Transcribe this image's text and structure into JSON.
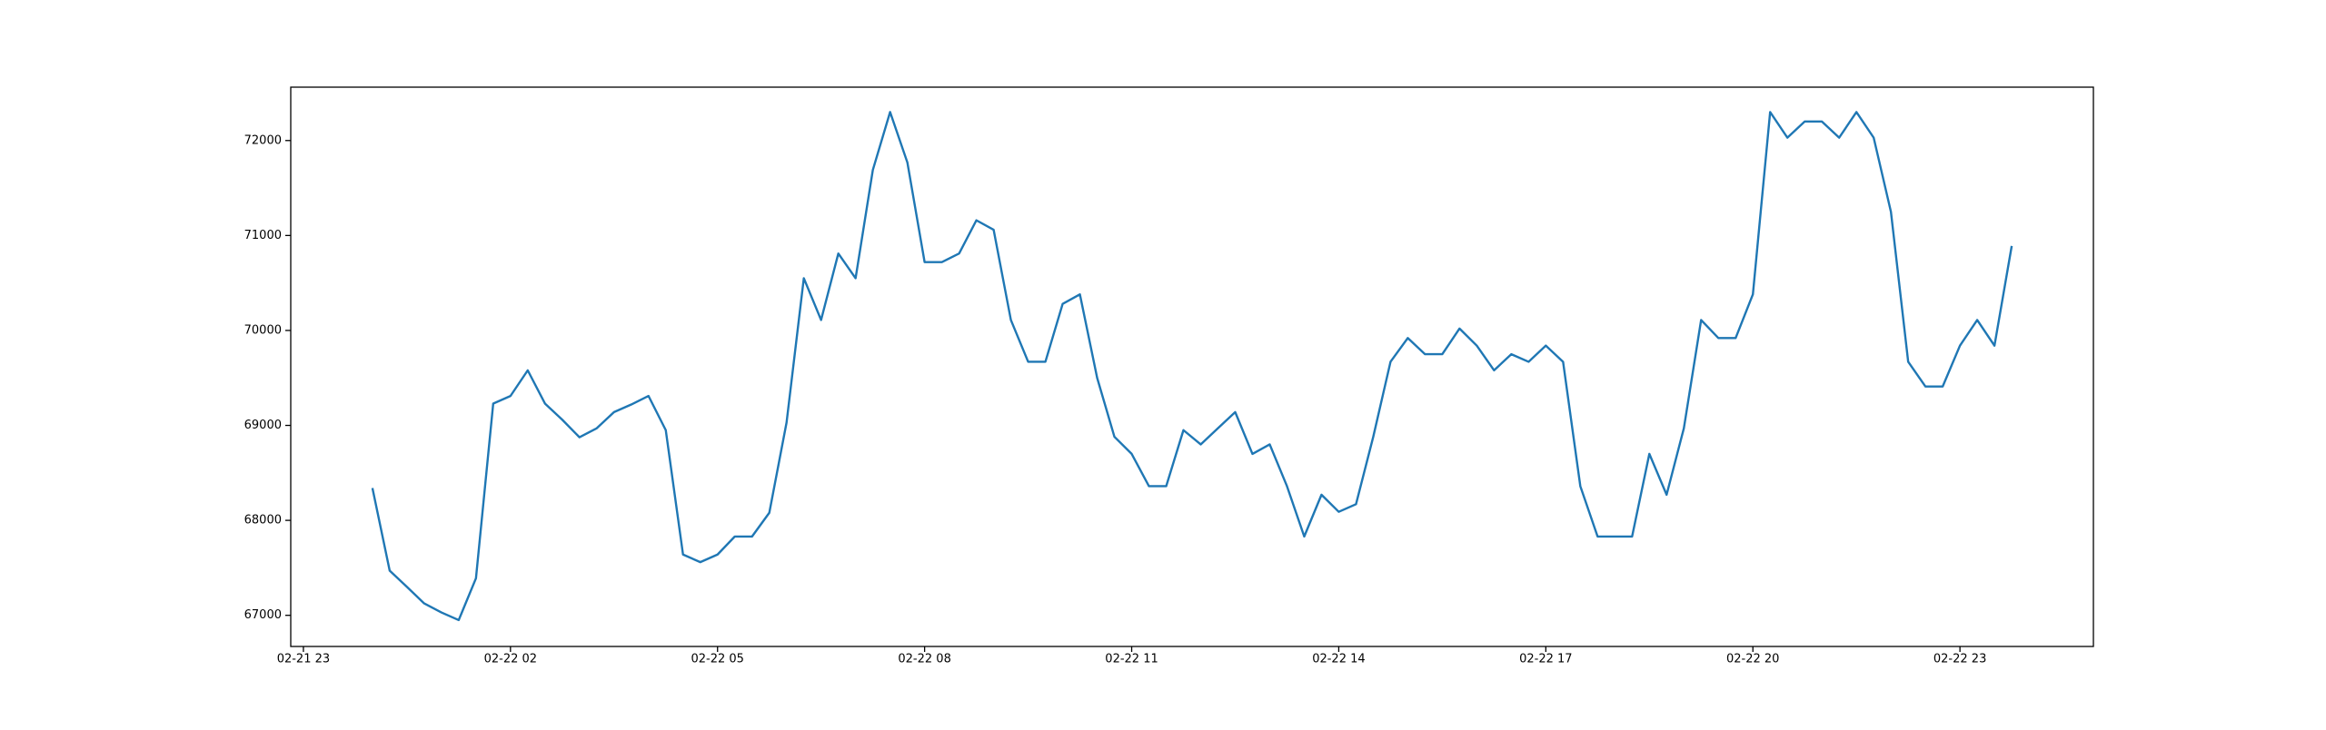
{
  "chart_data": {
    "type": "line",
    "x": [
      "02-22 00:00",
      "02-22 00:15",
      "02-22 00:30",
      "02-22 00:45",
      "02-22 01:00",
      "02-22 01:15",
      "02-22 01:30",
      "02-22 01:45",
      "02-22 02:00",
      "02-22 02:15",
      "02-22 02:30",
      "02-22 02:45",
      "02-22 03:00",
      "02-22 03:15",
      "02-22 03:30",
      "02-22 03:45",
      "02-22 04:00",
      "02-22 04:15",
      "02-22 04:30",
      "02-22 04:45",
      "02-22 05:00",
      "02-22 05:15",
      "02-22 05:30",
      "02-22 05:45",
      "02-22 06:00",
      "02-22 06:15",
      "02-22 06:30",
      "02-22 06:45",
      "02-22 07:00",
      "02-22 07:15",
      "02-22 07:30",
      "02-22 07:45",
      "02-22 08:00",
      "02-22 08:15",
      "02-22 08:30",
      "02-22 08:45",
      "02-22 09:00",
      "02-22 09:15",
      "02-22 09:30",
      "02-22 09:45",
      "02-22 10:00",
      "02-22 10:15",
      "02-22 10:30",
      "02-22 10:45",
      "02-22 11:00",
      "02-22 11:15",
      "02-22 11:30",
      "02-22 11:45",
      "02-22 12:00",
      "02-22 12:15",
      "02-22 12:30",
      "02-22 12:45",
      "02-22 13:00",
      "02-22 13:15",
      "02-22 13:30",
      "02-22 13:45",
      "02-22 14:00",
      "02-22 14:15",
      "02-22 14:30",
      "02-22 14:45",
      "02-22 15:00",
      "02-22 15:15",
      "02-22 15:30",
      "02-22 15:45",
      "02-22 16:00",
      "02-22 16:15",
      "02-22 16:30",
      "02-22 16:45",
      "02-22 17:00",
      "02-22 17:15",
      "02-22 17:30",
      "02-22 17:45",
      "02-22 18:00",
      "02-22 18:15",
      "02-22 18:30",
      "02-22 18:45",
      "02-22 19:00",
      "02-22 19:15",
      "02-22 19:30",
      "02-22 19:45",
      "02-22 20:00",
      "02-22 20:15",
      "02-22 20:30",
      "02-22 20:45",
      "02-22 21:00",
      "02-22 21:15",
      "02-22 21:30",
      "02-22 21:45",
      "02-22 22:00",
      "02-22 22:15",
      "02-22 22:30",
      "02-22 22:45",
      "02-22 23:00",
      "02-22 23:15",
      "02-22 23:30",
      "02-22 23:45"
    ],
    "series": [
      {
        "color": "#1f77b4",
        "values": [
          68340,
          67470,
          67300,
          67125,
          67030,
          66950,
          67390,
          69230,
          69310,
          69580,
          69230,
          69060,
          68875,
          68970,
          69140,
          69220,
          69310,
          68950,
          67640,
          67560,
          67640,
          67830,
          67830,
          68080,
          69030,
          70550,
          70110,
          70810,
          70550,
          71690,
          72300,
          71770,
          70720,
          70720,
          70810,
          71160,
          71060,
          70110,
          69670,
          69670,
          70280,
          70380,
          69500,
          68880,
          68700,
          68360,
          68360,
          68950,
          68800,
          68970,
          69140,
          68700,
          68800,
          68360,
          67830,
          68270,
          68090,
          68170,
          68880,
          69670,
          69920,
          69750,
          69750,
          70020,
          69840,
          69580,
          69750,
          69670,
          69840,
          69670,
          68360,
          67830,
          67830,
          67830,
          68700,
          68270,
          68970,
          70110,
          69920,
          69920,
          70380,
          72300,
          72030,
          72200,
          72200,
          72030,
          72300,
          72030,
          71250,
          69670,
          69410,
          69410,
          69840,
          70110,
          69840,
          70890
        ]
      }
    ],
    "xlim": [
      "02-21 22:49",
      "02-23 00:56"
    ],
    "xticks": [
      {
        "value": "02-21 23:00",
        "label": "02-21 23"
      },
      {
        "value": "02-22 02:00",
        "label": "02-22 02"
      },
      {
        "value": "02-22 05:00",
        "label": "02-22 05"
      },
      {
        "value": "02-22 08:00",
        "label": "02-22 08"
      },
      {
        "value": "02-22 11:00",
        "label": "02-22 11"
      },
      {
        "value": "02-22 14:00",
        "label": "02-22 14"
      },
      {
        "value": "02-22 17:00",
        "label": "02-22 17"
      },
      {
        "value": "02-22 20:00",
        "label": "02-22 20"
      },
      {
        "value": "02-22 23:00",
        "label": "02-22 23"
      }
    ],
    "ylim": [
      66672,
      72562
    ],
    "yticks": [
      67000,
      68000,
      69000,
      70000,
      71000,
      72000
    ]
  }
}
